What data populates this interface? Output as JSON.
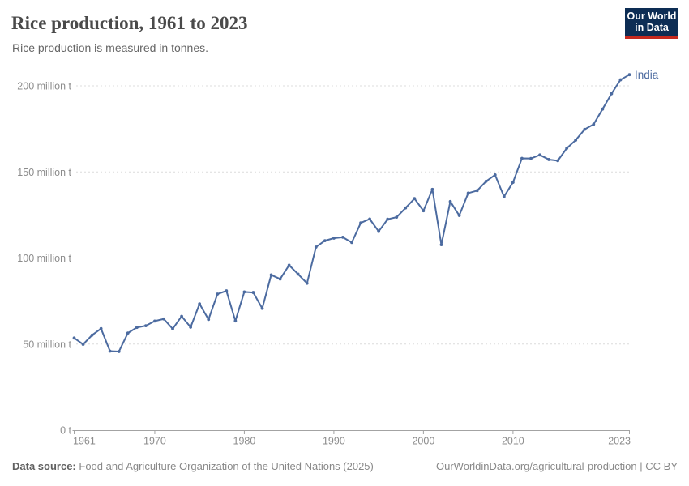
{
  "header": {
    "title": "Rice production, 1961 to 2023",
    "subtitle": "Rice production is measured in tonnes.",
    "logo": {
      "line1": "Our World",
      "line2": "in Data"
    }
  },
  "chart_data": {
    "type": "line",
    "title": "Rice production, 1961 to 2023",
    "subtitle": "Rice production is measured in tonnes.",
    "y_unit": "million tonnes",
    "xlim": [
      1961,
      2023
    ],
    "ylim": [
      0,
      200
    ],
    "grid": "horizontal-dashed",
    "legend_position": "end-of-line-label",
    "xticks": [
      1961,
      1970,
      1980,
      1990,
      2000,
      2010,
      2023
    ],
    "yticks": [
      {
        "value": 0,
        "label": "0 t"
      },
      {
        "value": 50,
        "label": "50 million t"
      },
      {
        "value": 100,
        "label": "100 million t"
      },
      {
        "value": 150,
        "label": "150 million t"
      },
      {
        "value": 200,
        "label": "200 million t"
      }
    ],
    "series": [
      {
        "name": "India",
        "x": [
          1961,
          1962,
          1963,
          1964,
          1965,
          1966,
          1967,
          1968,
          1969,
          1970,
          1971,
          1972,
          1973,
          1974,
          1975,
          1976,
          1977,
          1978,
          1979,
          1980,
          1981,
          1982,
          1983,
          1984,
          1985,
          1986,
          1987,
          1988,
          1989,
          1990,
          1991,
          1992,
          1993,
          1994,
          1995,
          1996,
          1997,
          1998,
          1999,
          2000,
          2001,
          2002,
          2003,
          2004,
          2005,
          2006,
          2007,
          2008,
          2009,
          2010,
          2011,
          2012,
          2013,
          2014,
          2015,
          2016,
          2017,
          2018,
          2019,
          2020,
          2021,
          2022,
          2023
        ],
        "values": [
          53.49,
          49.83,
          55.18,
          58.96,
          45.88,
          45.66,
          56.42,
          59.64,
          60.65,
          63.34,
          64.6,
          58.87,
          66.13,
          59.8,
          73.35,
          64.29,
          79.06,
          80.91,
          63.43,
          80.31,
          79.96,
          70.72,
          90.15,
          87.78,
          95.82,
          90.63,
          85.31,
          106.36,
          110.07,
          111.52,
          112.06,
          109.0,
          120.4,
          122.64,
          115.44,
          122.5,
          123.7,
          129.05,
          134.5,
          127.4,
          139.9,
          107.7,
          132.79,
          124.68,
          137.69,
          139.14,
          144.57,
          148.26,
          135.67,
          143.96,
          157.9,
          157.8,
          159.85,
          157.2,
          156.54,
          163.7,
          168.5,
          174.71,
          177.65,
          186.5,
          195.43,
          203.5,
          206.5
        ]
      }
    ]
  },
  "footer": {
    "source_label": "Data source:",
    "source_text": "Food and Agriculture Organization of the United Nations (2025)",
    "link_text": "OurWorldinData.org/agricultural-production",
    "separator": "|",
    "license": "CC BY"
  },
  "colors": {
    "line": "#4C6BA0",
    "end_label": "#4C6BA0",
    "title": "#4a4a4a",
    "subtitle": "#666666",
    "tick_label": "#8c8c8c",
    "grid": "#dcdcdc",
    "axis": "#a3a3a3",
    "footer": "#898989",
    "footer_bold": "#606060",
    "logo_bg": "#0d2d54",
    "logo_red": "#c6291e"
  }
}
